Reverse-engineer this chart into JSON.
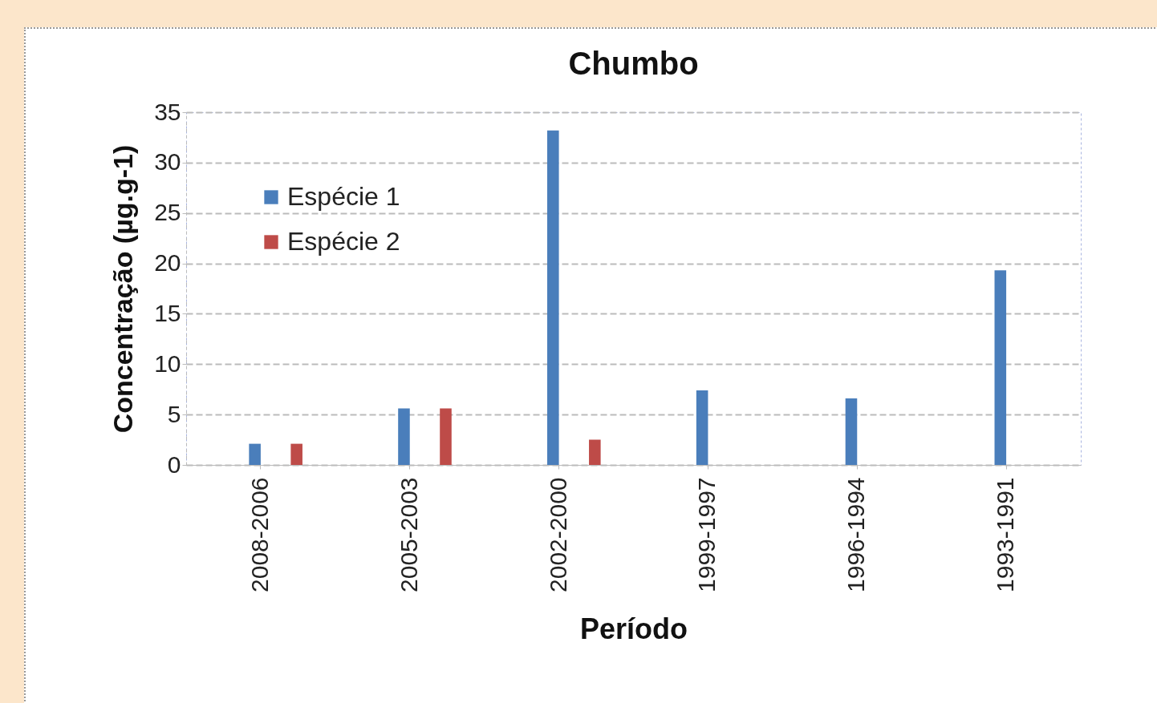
{
  "chart_data": {
    "type": "bar",
    "title": "Chumbo",
    "xlabel": "Período",
    "ylabel": "Concentração (µg.g-1)",
    "categories": [
      "2008-2006",
      "2005-2003",
      "2002-2000",
      "1999-1997",
      "1996-1994",
      "1993-1991"
    ],
    "series": [
      {
        "name": "Espécie 1",
        "color": "#4a7ebb",
        "values": [
          2.1,
          5.6,
          33.2,
          7.4,
          6.6,
          19.3
        ]
      },
      {
        "name": "Espécie 2",
        "color": "#be4b48",
        "values": [
          2.1,
          5.6,
          2.5,
          null,
          null,
          null
        ]
      }
    ],
    "ylim": [
      0,
      35
    ],
    "yticks": [
      0,
      5,
      10,
      15,
      20,
      25,
      30,
      35
    ],
    "grid": "y",
    "legend": "top left"
  }
}
